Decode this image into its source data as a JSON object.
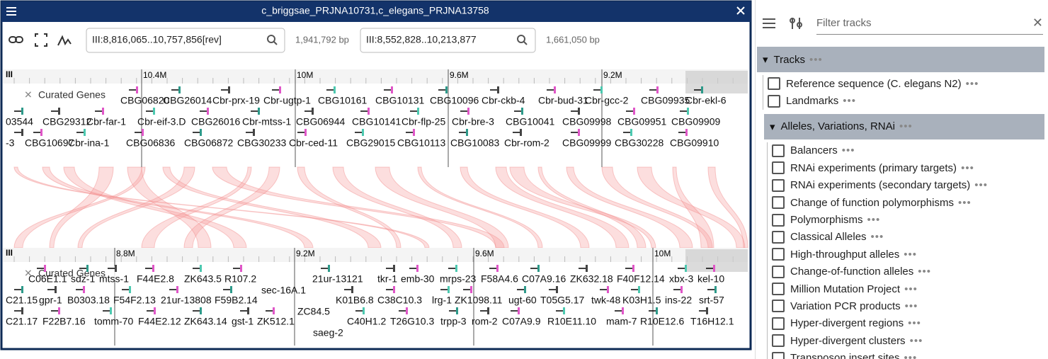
{
  "header": {
    "title": "c_briggsae_PRJNA10731,c_elegans_PRJNA13758"
  },
  "toolbar": {
    "locations": [
      {
        "value": "III:8,816,065..10,757,856[rev]",
        "size": "1,941,792 bp"
      },
      {
        "value": "III:8,552,828..10,213,877",
        "size": "1,661,050 bp"
      }
    ]
  },
  "views": [
    {
      "chrom": "III",
      "ruler": [
        "10.4M",
        "10M",
        "9.6M",
        "9.2M"
      ],
      "track": "Curated Genes",
      "rows": [
        [
          "CBG06820",
          "CBG26014",
          "Cbr-prx-19",
          "Cbr-ugtp-1",
          "CBG10161",
          "CBG10131",
          "CBG10096",
          "Cbr-ckb-4",
          "Cbr-bud-31",
          "Cbr-gcc-2",
          "CBG09935",
          "Cbr-ekl-6"
        ],
        [
          "03544",
          "CBG29312",
          "Cbr-far-1",
          "Cbr-eif-3.D",
          "CBG26016",
          "Cbr-mtss-1",
          "CBG06944",
          "CBG10141",
          "Cbr-flp-25",
          "Cbr-bre-3",
          "CBG10041",
          "CBG09998",
          "CBG09951",
          "CBG09909"
        ],
        [
          "-3",
          "CBG10697",
          "Cbr-ina-1",
          "CBG06836",
          "CBG06872",
          "CBG30233",
          "Cbr-ced-11",
          "CBG29015",
          "CBG10113",
          "CBG10083",
          "Cbr-rom-2",
          "CBG09999",
          "CBG30228",
          "CBG09910"
        ]
      ],
      "extras": []
    },
    {
      "chrom": "III",
      "ruler": [
        "8.8M",
        "9.2M",
        "9.6M",
        "10M"
      ],
      "track": "Curated Genes",
      "rows": [
        [
          "C06E1.1",
          "sdz-1",
          "mtss-1",
          "F44E2.8",
          "ZK643.5",
          "R107.2",
          "21ur-13121",
          "tkr-1",
          "emb-30",
          "mrps-23",
          "F58A4.6",
          "C07A9.16",
          "ZK632.18",
          "F40F12.14",
          "xbx-3",
          "kel-10"
        ],
        [
          "C21.15",
          "gpr-1",
          "B0303.18",
          "F54F2.13",
          "21ur-13808",
          "F59B2.14",
          "K01B6.8",
          "C38C10.3",
          "lrg-1",
          "ZK1098.11",
          "ugt-60",
          "T05G5.17",
          "twk-48",
          "K03H1.5",
          "ins-22",
          "srt-57"
        ],
        [
          "C21.17",
          "F22B7.16",
          "tomm-70",
          "F44E2.12",
          "ZK643.14",
          "gst-1",
          "ZK512.1",
          "C40H1.2",
          "T26G10.3",
          "trpp-3",
          "rom-2",
          "C07A9.9",
          "R10E11.10",
          "mam-7",
          "R10E12.6",
          "T16H12.1"
        ]
      ],
      "extras": [
        "sec-16A.1",
        "ZC84.5",
        "saeg-2"
      ]
    }
  ],
  "selector": {
    "filter_placeholder": "Filter tracks",
    "sections": [
      {
        "title": "Tracks",
        "items": [
          "Reference sequence (C. elegans N2)",
          "Landmarks"
        ]
      },
      {
        "title": "Alleles, Variations, RNAi",
        "items": [
          "Balancers",
          "RNAi experiments (primary targets)",
          "RNAi experiments (secondary targets)",
          "Change of function polymorphisms",
          "Polymorphisms",
          "Classical Alleles",
          "High-throughput alleles",
          "Change-of-function alleles",
          "Million Mutation Project",
          "Variation PCR products",
          "Hyper-divergent regions",
          "Hyper-divergent clusters",
          "Transposon insert sites"
        ]
      }
    ]
  }
}
